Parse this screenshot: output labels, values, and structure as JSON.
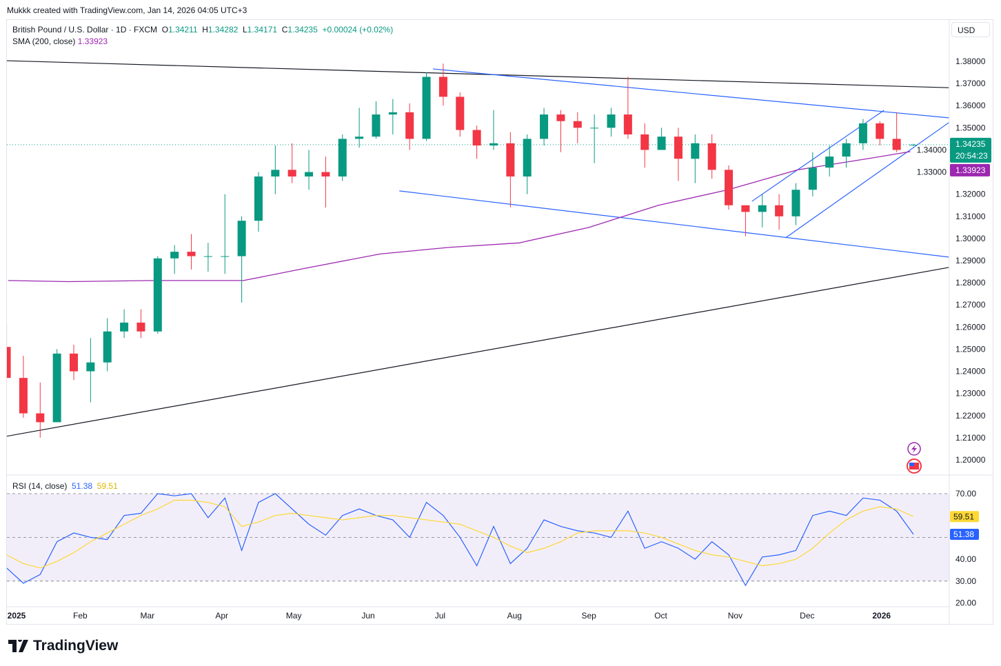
{
  "credit": "Mukkk created with TradingView.com, Jan 14, 2026 04:05 UTC+3",
  "legend": {
    "symbol": "British Pound / U.S. Dollar · 1D · FXCM",
    "o_label": "O",
    "o": "1.34211",
    "h_label": "H",
    "h": "1.34282",
    "l_label": "L",
    "l": "1.34171",
    "c_label": "C",
    "c": "1.34235",
    "change": "+0.00024 (+0.02%)",
    "sma_label": "SMA (200, close)",
    "sma_value": "1.33923"
  },
  "rsi_legend": {
    "label": "RSI (14, close)",
    "rsi": "51.38",
    "ma": "59.51"
  },
  "currency": "USD",
  "brand": "TradingView",
  "colors": {
    "up": "#089981",
    "down": "#f23645",
    "sma": "#9c27b0",
    "rsi": "#2962ff",
    "rsi_ma": "#fdd835",
    "trend": "#131722",
    "channel": "#2962ff"
  },
  "chart_data": [
    {
      "type": "candlestick",
      "title": "British Pound / U.S. Dollar · 1D · FXCM",
      "ylim": [
        1.195,
        1.385
      ],
      "yticks": [
        "1.38000",
        "1.37000",
        "1.36000",
        "1.35000",
        "1.34000",
        "1.33000",
        "1.32000",
        "1.31000",
        "1.30000",
        "1.29000",
        "1.28000",
        "1.27000",
        "1.26000",
        "1.25000",
        "1.24000",
        "1.23000",
        "1.22000",
        "1.21000",
        "1.20000"
      ],
      "xticks": [
        {
          "d": "2025-01-01",
          "label": "2025"
        },
        {
          "d": "2025-02-01",
          "label": "Feb"
        },
        {
          "d": "2025-03-01",
          "label": "Mar"
        },
        {
          "d": "2025-04-01",
          "label": "Apr"
        },
        {
          "d": "2025-05-01",
          "label": "May"
        },
        {
          "d": "2025-06-01",
          "label": "Jun"
        },
        {
          "d": "2025-07-01",
          "label": "Jul"
        },
        {
          "d": "2025-08-01",
          "label": "Aug"
        },
        {
          "d": "2025-09-01",
          "label": "Sep"
        },
        {
          "d": "2025-10-01",
          "label": "Oct"
        },
        {
          "d": "2025-11-01",
          "label": "Nov"
        },
        {
          "d": "2025-12-01",
          "label": "Dec"
        },
        {
          "d": "2026-01-01",
          "label": "2026"
        }
      ],
      "last_price": {
        "value": 1.34235,
        "label": "1.34235",
        "countdown": "20:54:23"
      },
      "sma_last": {
        "value": 1.33923,
        "label": "1.33923"
      },
      "candles": [
        [
          "2024-12-30",
          1.251,
          1.261,
          1.235,
          1.237
        ],
        [
          "2025-01-06",
          1.237,
          1.247,
          1.219,
          1.221
        ],
        [
          "2025-01-13",
          1.221,
          1.235,
          1.21,
          1.217
        ],
        [
          "2025-01-20",
          1.217,
          1.25,
          1.218,
          1.248
        ],
        [
          "2025-01-27",
          1.248,
          1.252,
          1.236,
          1.24
        ],
        [
          "2025-02-03",
          1.24,
          1.255,
          1.226,
          1.244
        ],
        [
          "2025-02-10",
          1.244,
          1.264,
          1.24,
          1.258
        ],
        [
          "2025-02-17",
          1.258,
          1.268,
          1.255,
          1.262
        ],
        [
          "2025-02-24",
          1.262,
          1.268,
          1.255,
          1.258
        ],
        [
          "2025-03-03",
          1.258,
          1.292,
          1.257,
          1.291
        ],
        [
          "2025-03-10",
          1.291,
          1.297,
          1.284,
          1.294
        ],
        [
          "2025-03-17",
          1.294,
          1.302,
          1.286,
          1.292
        ],
        [
          "2025-03-24",
          1.292,
          1.298,
          1.285,
          1.292
        ],
        [
          "2025-03-31",
          1.292,
          1.32,
          1.284,
          1.292
        ],
        [
          "2025-04-07",
          1.292,
          1.31,
          1.271,
          1.308
        ],
        [
          "2025-04-14",
          1.308,
          1.33,
          1.303,
          1.328
        ],
        [
          "2025-04-21",
          1.328,
          1.342,
          1.32,
          1.331
        ],
        [
          "2025-04-28",
          1.331,
          1.343,
          1.325,
          1.328
        ],
        [
          "2025-05-05",
          1.328,
          1.34,
          1.322,
          1.33
        ],
        [
          "2025-05-12",
          1.33,
          1.337,
          1.314,
          1.328
        ],
        [
          "2025-05-19",
          1.328,
          1.347,
          1.326,
          1.345
        ],
        [
          "2025-05-26",
          1.345,
          1.359,
          1.341,
          1.346
        ],
        [
          "2025-06-02",
          1.346,
          1.362,
          1.345,
          1.356
        ],
        [
          "2025-06-09",
          1.356,
          1.363,
          1.347,
          1.357
        ],
        [
          "2025-06-16",
          1.357,
          1.361,
          1.34,
          1.345
        ],
        [
          "2025-06-23",
          1.345,
          1.375,
          1.344,
          1.373
        ],
        [
          "2025-06-30",
          1.373,
          1.379,
          1.36,
          1.364
        ],
        [
          "2025-07-07",
          1.364,
          1.366,
          1.346,
          1.349
        ],
        [
          "2025-07-14",
          1.349,
          1.351,
          1.336,
          1.342
        ],
        [
          "2025-07-21",
          1.342,
          1.358,
          1.34,
          1.343
        ],
        [
          "2025-07-28",
          1.343,
          1.348,
          1.314,
          1.328
        ],
        [
          "2025-08-04",
          1.328,
          1.347,
          1.32,
          1.345
        ],
        [
          "2025-08-11",
          1.345,
          1.359,
          1.342,
          1.356
        ],
        [
          "2025-08-18",
          1.356,
          1.358,
          1.339,
          1.353
        ],
        [
          "2025-08-25",
          1.353,
          1.357,
          1.343,
          1.35
        ],
        [
          "2025-09-01",
          1.35,
          1.356,
          1.334,
          1.35
        ],
        [
          "2025-09-08",
          1.35,
          1.359,
          1.346,
          1.356
        ],
        [
          "2025-09-15",
          1.356,
          1.373,
          1.345,
          1.347
        ],
        [
          "2025-09-22",
          1.347,
          1.352,
          1.332,
          1.34
        ],
        [
          "2025-09-29",
          1.34,
          1.35,
          1.34,
          1.346
        ],
        [
          "2025-10-06",
          1.346,
          1.35,
          1.326,
          1.336
        ],
        [
          "2025-10-13",
          1.336,
          1.347,
          1.325,
          1.343
        ],
        [
          "2025-10-20",
          1.343,
          1.347,
          1.327,
          1.331
        ],
        [
          "2025-10-27",
          1.331,
          1.333,
          1.313,
          1.315
        ],
        [
          "2025-11-03",
          1.315,
          1.315,
          1.301,
          1.312
        ],
        [
          "2025-11-10",
          1.312,
          1.32,
          1.305,
          1.315
        ],
        [
          "2025-11-17",
          1.315,
          1.32,
          1.304,
          1.31
        ],
        [
          "2025-11-24",
          1.31,
          1.325,
          1.306,
          1.322
        ],
        [
          "2025-12-01",
          1.322,
          1.339,
          1.319,
          1.332
        ],
        [
          "2025-12-08",
          1.332,
          1.342,
          1.328,
          1.337
        ],
        [
          "2025-12-15",
          1.337,
          1.345,
          1.332,
          1.343
        ],
        [
          "2025-12-22",
          1.343,
          1.354,
          1.34,
          1.352
        ],
        [
          "2025-12-29",
          1.352,
          1.353,
          1.342,
          1.345
        ],
        [
          "2026-01-05",
          1.345,
          1.357,
          1.339,
          1.34
        ],
        [
          "2026-01-12",
          1.34211,
          1.34282,
          1.34171,
          1.34235
        ]
      ],
      "sma": [
        [
          "2025-01-02",
          1.281
        ],
        [
          "2025-01-27",
          1.2805
        ],
        [
          "2025-03-03",
          1.281
        ],
        [
          "2025-04-10",
          1.281
        ],
        [
          "2025-05-08",
          1.287
        ],
        [
          "2025-06-06",
          1.293
        ],
        [
          "2025-07-05",
          1.296
        ],
        [
          "2025-08-03",
          1.298
        ],
        [
          "2025-09-01",
          1.305
        ],
        [
          "2025-09-30",
          1.315
        ],
        [
          "2025-10-29",
          1.322
        ],
        [
          "2025-11-27",
          1.331
        ],
        [
          "2025-12-26",
          1.336
        ],
        [
          "2026-01-13",
          1.33923
        ]
      ],
      "drawings": [
        {
          "name": "upper-trendline",
          "kind": "trend",
          "p1": [
            "2025-01-01",
            1.3803
          ],
          "p2": [
            "2026-01-29",
            1.3681
          ]
        },
        {
          "name": "lower-trendline",
          "kind": "trend",
          "p1": [
            "2025-01-01",
            1.2106
          ],
          "p2": [
            "2026-01-29",
            1.2869
          ]
        },
        {
          "name": "channel-upper",
          "kind": "channel",
          "p1": [
            "2025-06-28",
            1.3766
          ],
          "p2": [
            "2026-01-29",
            1.3545
          ]
        },
        {
          "name": "channel-lower",
          "kind": "channel",
          "p1": [
            "2025-06-14",
            1.3215
          ],
          "p2": [
            "2026-01-29",
            1.2916
          ]
        },
        {
          "name": "rising-channel-upper",
          "kind": "channel",
          "p1": [
            "2025-11-08",
            1.3168
          ],
          "p2": [
            "2026-01-02",
            1.3579
          ]
        },
        {
          "name": "rising-channel-lower",
          "kind": "channel",
          "p1": [
            "2025-11-22",
            1.3003
          ],
          "p2": [
            "2026-01-29",
            1.3523
          ]
        }
      ]
    },
    {
      "type": "line",
      "title": "RSI (14, close)",
      "ylim": [
        16,
        74
      ],
      "yticks": [
        "70.00",
        "40.00",
        "30.00",
        "20.00"
      ],
      "bands": [
        30,
        50,
        70
      ],
      "series": [
        {
          "name": "RSI",
          "values": [
            36,
            29,
            33,
            48,
            52,
            50,
            49,
            60,
            61,
            70,
            69,
            70,
            59,
            68,
            44,
            66,
            70,
            63,
            56,
            51,
            60,
            63,
            60,
            58,
            50,
            66,
            60,
            50,
            37,
            55,
            38,
            45,
            58,
            55,
            53,
            52,
            50,
            62,
            45,
            48,
            45,
            40,
            48,
            42,
            28,
            41,
            42,
            44,
            60,
            62,
            60,
            68,
            67,
            62,
            51.38
          ]
        },
        {
          "name": "RSI MA",
          "values": [
            42,
            38,
            36,
            39,
            43,
            48,
            52,
            56,
            60,
            63,
            67,
            67,
            66,
            64,
            55,
            57,
            60,
            61,
            60,
            59,
            58,
            59,
            60,
            60,
            59,
            58,
            57,
            56,
            53,
            50,
            46,
            43,
            45,
            48,
            52,
            53,
            53,
            53,
            52,
            50,
            47,
            44,
            42,
            41,
            39,
            37,
            38,
            40,
            45,
            52,
            58,
            62,
            64,
            63,
            59.51
          ]
        }
      ],
      "last_labels": {
        "rsi": "51.38",
        "ma": "59.51"
      }
    }
  ]
}
